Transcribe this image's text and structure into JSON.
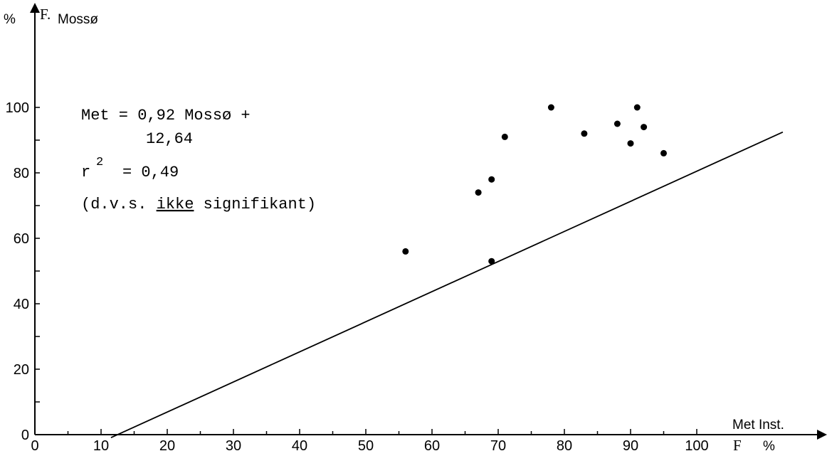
{
  "chart_data": {
    "type": "scatter",
    "x_axis": {
      "label_serif": "F",
      "label_sans": "Met Inst.",
      "unit": "%",
      "range": [
        0,
        115
      ],
      "ticks": [
        0,
        10,
        20,
        30,
        40,
        50,
        60,
        70,
        80,
        90,
        100
      ],
      "minor_step": 5
    },
    "y_axis": {
      "unit": "%",
      "label_serif": "F.",
      "label_sans": "Mossø",
      "range": [
        0,
        115
      ],
      "ticks": [
        0,
        20,
        40,
        60,
        80,
        100
      ],
      "minor_step": 10
    },
    "points": [
      {
        "x": 56,
        "y": 56
      },
      {
        "x": 67,
        "y": 74
      },
      {
        "x": 69,
        "y": 78
      },
      {
        "x": 69,
        "y": 53
      },
      {
        "x": 71,
        "y": 91
      },
      {
        "x": 78,
        "y": 100
      },
      {
        "x": 83,
        "y": 92
      },
      {
        "x": 88,
        "y": 95
      },
      {
        "x": 90,
        "y": 89
      },
      {
        "x": 91,
        "y": 100
      },
      {
        "x": 92,
        "y": 94
      },
      {
        "x": 95,
        "y": 86
      }
    ],
    "regression": {
      "x_start": 11.5,
      "x_end": 113,
      "slope": 0.92,
      "intercept": -11.5
    },
    "annotation": {
      "line1": "Met = 0,92 Mossø +",
      "line2": "12,64",
      "r_label": "r",
      "r_sup": "2",
      "r_value": "= 0,49",
      "note_open": "(d.v.s. ",
      "note_underlined": "ikke",
      "note_close": " signifikant)"
    },
    "grid": false,
    "legend": "none"
  }
}
